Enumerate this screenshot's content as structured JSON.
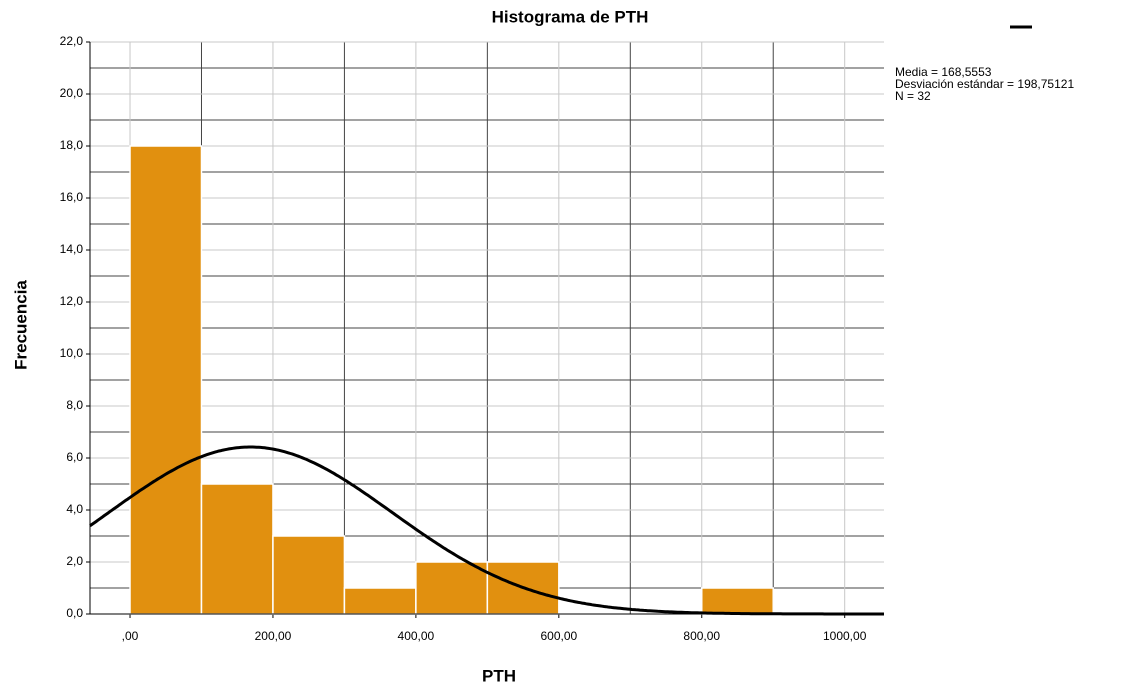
{
  "chart_data": {
    "type": "histogram",
    "title": "Histograma de PTH",
    "x_label": "PTH",
    "y_label": "Frecuencia",
    "bins": [
      0,
      100,
      200,
      300,
      400,
      500,
      600,
      700,
      800,
      900
    ],
    "values": [
      18,
      5,
      3,
      1,
      2,
      2,
      0,
      0,
      1
    ],
    "color": "#e1900f",
    "xlim": [
      -56,
      1055
    ],
    "xticks": [
      {
        "value": 0,
        "label": ",00"
      },
      {
        "value": 200,
        "label": "200,00"
      },
      {
        "value": 400,
        "label": "400,00"
      },
      {
        "value": 600,
        "label": "600,00"
      },
      {
        "value": 800,
        "label": "800,00"
      },
      {
        "value": 1000,
        "label": "1000,00"
      }
    ],
    "x_minor_grid": [
      100,
      300,
      500,
      700,
      900
    ],
    "ylim": [
      0,
      22
    ],
    "yticks": [
      {
        "value": 0,
        "label": "0,0"
      },
      {
        "value": 2,
        "label": "2,0"
      },
      {
        "value": 4,
        "label": "4,0"
      },
      {
        "value": 6,
        "label": "6,0"
      },
      {
        "value": 8,
        "label": "8,0"
      },
      {
        "value": 10,
        "label": "10,0"
      },
      {
        "value": 12,
        "label": "12,0"
      },
      {
        "value": 14,
        "label": "14,0"
      },
      {
        "value": 16,
        "label": "16,0"
      },
      {
        "value": 18,
        "label": "18,0"
      },
      {
        "value": 20,
        "label": "20,0"
      },
      {
        "value": 22,
        "label": "22,0"
      }
    ],
    "y_minor_grid": [
      1,
      3,
      5,
      7,
      9,
      11,
      13,
      15,
      17,
      19,
      21
    ],
    "grid": true,
    "curve_color": "#000000",
    "stats": {
      "mean": {
        "value": 168.5553,
        "label": "Media = 168,5553"
      },
      "sd": {
        "value": 198.75121,
        "label": "Desviación estándar = 198,75121"
      },
      "n": {
        "value": 32,
        "label": "N = 32"
      }
    }
  }
}
